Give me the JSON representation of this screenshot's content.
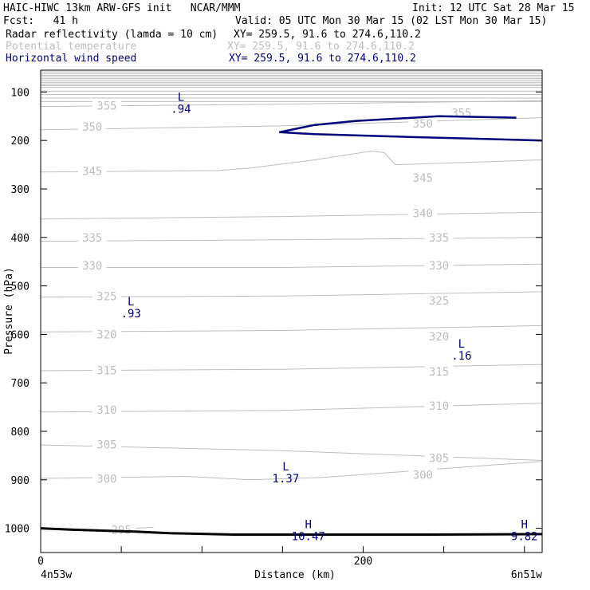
{
  "header": {
    "title_left": "HAIC-HIWC 13km ARW-GFS init   NCAR/MMM",
    "init": "Init: 12 UTC Sat 28 Mar 15",
    "fcst": "Fcst:   41 h",
    "valid": "Valid: 05 UTC Mon 30 Mar 15 (02 LST Mon 30 Mar 15)",
    "fields": [
      {
        "name": "Radar reflectivity (lamda = 10 cm)",
        "xy": "XY= 259.5, 91.6 to 274.6,110.2",
        "color": "#000000"
      },
      {
        "name": "Potential temperature",
        "xy": "XY= 259.5, 91.6 to 274.6,110.2",
        "color": "#bdbdbd"
      },
      {
        "name": "Horizontal wind speed",
        "xy": "XY= 259.5, 91.6 to 274.6,110.2",
        "color": "#00007a"
      }
    ]
  },
  "chart_data": {
    "type": "line",
    "xlabel": "Distance (km)",
    "ylabel": "Pressure (hPa)",
    "xlim": [
      0,
      311
    ],
    "ylim": [
      1050,
      55
    ],
    "x_ticks": [
      0,
      50,
      100,
      150,
      200,
      250,
      300
    ],
    "x_tick_labels": [
      {
        "x": 0,
        "label": "0"
      },
      {
        "x": 200,
        "label": "200"
      }
    ],
    "y_ticks": [
      100,
      200,
      300,
      400,
      500,
      600,
      700,
      800,
      900,
      1000
    ],
    "endpoint_labels": {
      "left": "4n53w",
      "right": "6n51w"
    },
    "colors": {
      "theta": "#bdbdbd",
      "wind": "#00007a",
      "terrain": "#000000",
      "axis": "#000000"
    },
    "theta_isentropes": [
      {
        "theta": 355,
        "points": [
          [
            0,
            130
          ],
          [
            150,
            125
          ],
          [
            311,
            118
          ]
        ],
        "labels": [
          {
            "x": 41,
            "p": 128
          },
          {
            "x": 261,
            "p": 143
          }
        ]
      },
      {
        "theta": 350,
        "points": [
          [
            0,
            178
          ],
          [
            150,
            170
          ],
          [
            311,
            153
          ]
        ],
        "labels": [
          {
            "x": 32,
            "p": 172
          },
          {
            "x": 237,
            "p": 165
          }
        ]
      },
      {
        "theta": 345,
        "points": [
          [
            0,
            265
          ],
          [
            110,
            262
          ],
          [
            130,
            257
          ],
          [
            170,
            240
          ],
          [
            205,
            222
          ],
          [
            213,
            225
          ],
          [
            220,
            250
          ],
          [
            311,
            240
          ]
        ],
        "labels": [
          {
            "x": 32,
            "p": 263
          },
          {
            "x": 237,
            "p": 277
          }
        ]
      },
      {
        "theta": 340,
        "points": [
          [
            0,
            362
          ],
          [
            150,
            357
          ],
          [
            311,
            348
          ]
        ],
        "labels": [
          {
            "x": 237,
            "p": 350
          }
        ]
      },
      {
        "theta": 335,
        "points": [
          [
            0,
            408
          ],
          [
            150,
            405
          ],
          [
            311,
            400
          ]
        ],
        "labels": [
          {
            "x": 32,
            "p": 400
          },
          {
            "x": 247,
            "p": 400
          }
        ]
      },
      {
        "theta": 330,
        "points": [
          [
            0,
            462
          ],
          [
            150,
            462
          ],
          [
            311,
            455
          ]
        ],
        "labels": [
          {
            "x": 32,
            "p": 458
          },
          {
            "x": 247,
            "p": 458
          }
        ]
      },
      {
        "theta": 325,
        "points": [
          [
            0,
            523
          ],
          [
            150,
            521
          ],
          [
            311,
            512
          ]
        ],
        "labels": [
          {
            "x": 41,
            "p": 521
          },
          {
            "x": 247,
            "p": 530
          }
        ]
      },
      {
        "theta": 320,
        "points": [
          [
            0,
            595
          ],
          [
            150,
            592
          ],
          [
            311,
            582
          ]
        ],
        "labels": [
          {
            "x": 41,
            "p": 600
          },
          {
            "x": 247,
            "p": 604
          }
        ]
      },
      {
        "theta": 315,
        "points": [
          [
            0,
            675
          ],
          [
            150,
            672
          ],
          [
            311,
            662
          ]
        ],
        "labels": [
          {
            "x": 41,
            "p": 674
          },
          {
            "x": 247,
            "p": 677
          }
        ]
      },
      {
        "theta": 310,
        "points": [
          [
            0,
            760
          ],
          [
            150,
            757
          ],
          [
            311,
            742
          ]
        ],
        "labels": [
          {
            "x": 41,
            "p": 756
          },
          {
            "x": 247,
            "p": 747
          }
        ]
      },
      {
        "theta": 305,
        "points": [
          [
            0,
            828
          ],
          [
            150,
            840
          ],
          [
            311,
            860
          ]
        ],
        "labels": [
          {
            "x": 41,
            "p": 827
          },
          {
            "x": 247,
            "p": 855
          }
        ]
      },
      {
        "theta": 300,
        "points": [
          [
            0,
            897
          ],
          [
            90,
            893
          ],
          [
            130,
            900
          ],
          [
            175,
            895
          ],
          [
            311,
            862
          ]
        ],
        "labels": [
          {
            "x": 41,
            "p": 898
          },
          {
            "x": 237,
            "p": 890
          }
        ]
      },
      {
        "theta": 295,
        "points": [
          [
            40,
            1003
          ],
          [
            70,
            998
          ]
        ],
        "labels": [
          {
            "x": 50,
            "p": 1003
          }
        ]
      }
    ],
    "wind_contour": {
      "points": [
        [
          295,
          153
        ],
        [
          247,
          150
        ],
        [
          195,
          160
        ],
        [
          170,
          168
        ],
        [
          148,
          183
        ],
        [
          170,
          187
        ],
        [
          230,
          193
        ],
        [
          311,
          200
        ]
      ]
    },
    "terrain": {
      "points": [
        [
          0,
          1000
        ],
        [
          20,
          1003
        ],
        [
          60,
          1007
        ],
        [
          80,
          1010
        ],
        [
          120,
          1013
        ],
        [
          170,
          1013
        ],
        [
          240,
          1013
        ],
        [
          311,
          1012
        ]
      ]
    },
    "extrema": [
      {
        "kind": "L",
        "value": ".94",
        "x": 87,
        "p": 118,
        "color": "#00007a"
      },
      {
        "kind": "L",
        "value": ".93",
        "x": 56,
        "p": 540,
        "color": "#00007a"
      },
      {
        "kind": "L",
        "value": ".16",
        "x": 261,
        "p": 627,
        "color": "#00007a"
      },
      {
        "kind": "L",
        "value": "1.37",
        "x": 152,
        "p": 881,
        "color": "#00007a"
      },
      {
        "kind": "H",
        "value": "10.47",
        "x": 166,
        "p": 1000,
        "color": "#00007a"
      },
      {
        "kind": "H",
        "value": "9.82",
        "x": 300,
        "p": 1000,
        "color": "#00007a"
      }
    ]
  }
}
